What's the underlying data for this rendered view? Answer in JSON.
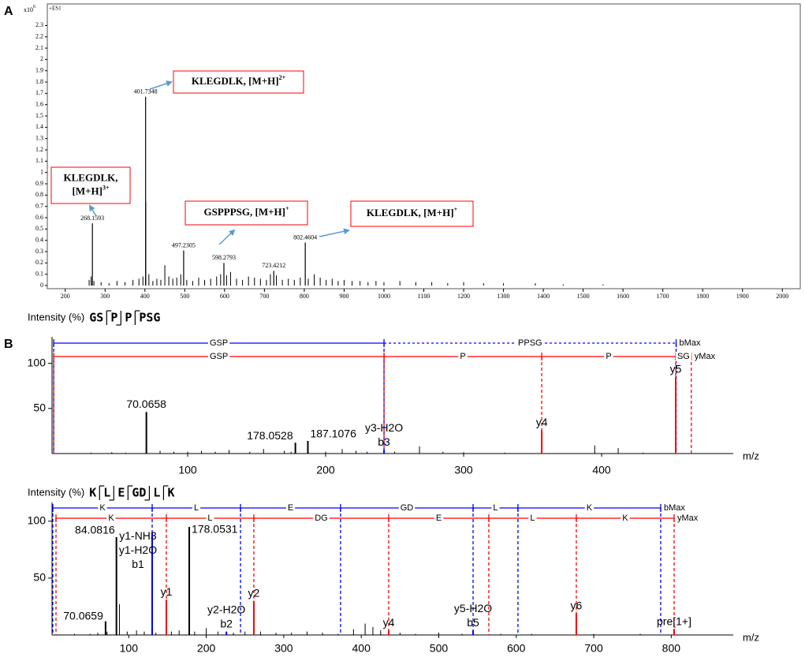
{
  "chart_data": [
    {
      "type": "stem",
      "panel_label": "A",
      "y_unit": "x10",
      "y_unit_exponent": "6",
      "mode": "+ES1",
      "xlim": [
        155,
        2045
      ],
      "xticks": [
        200,
        300,
        400,
        500,
        600,
        700,
        800,
        900,
        1000,
        1100,
        1200,
        1300,
        1400,
        1500,
        1600,
        1700,
        1800,
        1900,
        2000
      ],
      "ylim": [
        0,
        2.47
      ],
      "yticks": [
        0,
        0.1,
        0.2,
        0.3,
        0.4,
        0.5,
        0.6,
        0.7,
        0.8,
        0.9,
        1,
        1.1,
        1.2,
        1.3,
        1.4,
        1.5,
        1.6,
        1.7,
        1.8,
        1.9,
        2,
        2.1,
        2.2,
        2.3
      ],
      "color": "#000000",
      "x": [
        260,
        265,
        272,
        290,
        310,
        330,
        350,
        370,
        385,
        395,
        402.2,
        410,
        420,
        430,
        440,
        450,
        460,
        470,
        480,
        490,
        505,
        520,
        535,
        550,
        565,
        580,
        590,
        605,
        615,
        630,
        645,
        660,
        675,
        690,
        705,
        715,
        730,
        745,
        760,
        775,
        790,
        810,
        825,
        840,
        855,
        870,
        885,
        900,
        920,
        940,
        960,
        980,
        1000,
        1040,
        1080,
        1120,
        1160,
        1200,
        1250,
        1300,
        1380,
        1450,
        1550
      ],
      "values": [
        0.05,
        0.08,
        0.04,
        0.03,
        0.02,
        0.04,
        0.03,
        0.05,
        0.06,
        0.08,
        0.74,
        0.1,
        0.04,
        0.06,
        0.05,
        0.18,
        0.08,
        0.06,
        0.07,
        0.1,
        0.05,
        0.04,
        0.07,
        0.05,
        0.06,
        0.08,
        0.1,
        0.09,
        0.12,
        0.06,
        0.05,
        0.08,
        0.07,
        0.06,
        0.05,
        0.1,
        0.09,
        0.05,
        0.06,
        0.05,
        0.07,
        0.06,
        0.1,
        0.07,
        0.05,
        0.06,
        0.04,
        0.05,
        0.04,
        0.04,
        0.03,
        0.04,
        0.03,
        0.04,
        0.03,
        0.03,
        0.02,
        0.03,
        0.02,
        0.02,
        0.02,
        0.01,
        0.01
      ],
      "labeled_peaks": {
        "x": [
          268.1593,
          401.7348,
          497.2305,
          598.2793,
          723.4212,
          802.4604
        ],
        "values": [
          0.55,
          1.67,
          0.31,
          0.2,
          0.13,
          0.38
        ]
      },
      "annotation_color": "#ff0000",
      "arrow_color": "#5b9bd5",
      "annotations": [
        {
          "lines": [
            "KLEGDLK,",
            "[M+H]"
          ],
          "sup": "3+"
        },
        {
          "lines": [
            "KLEGDLK, [M+H]"
          ],
          "sup": "2+"
        },
        {
          "lines": [
            "GSPPPSG, [M+H]"
          ],
          "sup": "+"
        },
        {
          "lines": [
            "KLEGDLK, [M+H]"
          ],
          "sup": "+"
        }
      ]
    },
    {
      "type": "stem",
      "panel_label": "B",
      "y_label": "Intensity (%)",
      "sequence": [
        "GS",
        "P",
        "P",
        "PSG"
      ],
      "x_label": "m/z",
      "xlim": [
        1.7,
        495.4
      ],
      "xticks": [
        100,
        200,
        300,
        400
      ],
      "ylim": [
        0,
        125
      ],
      "yticks": [
        50,
        100
      ],
      "color": "#000000",
      "x": [
        30,
        45,
        55,
        80,
        90,
        100,
        110,
        120,
        130,
        145,
        155,
        170,
        175,
        200,
        212,
        222,
        230,
        250,
        268,
        285,
        300,
        330,
        395,
        412,
        430
      ],
      "values": [
        1,
        1.5,
        1,
        3,
        2,
        2,
        3,
        2,
        4,
        2,
        5,
        3,
        2,
        2,
        5,
        3,
        2,
        2,
        8,
        2,
        1.5,
        1,
        9,
        6,
        1
      ],
      "labeled_peaks": {
        "x": [
          70.0658,
          178.0528,
          187.1076
        ],
        "values": [
          46,
          12,
          14
        ]
      },
      "ions": {
        "x": [
          242.3,
          356.6,
          453.7
        ],
        "values": [
          4,
          26,
          85
        ],
        "labels": [
          [
            "y3-H2O",
            "b3"
          ],
          [
            "y4"
          ],
          [
            "y5"
          ]
        ],
        "colors": [
          "#0000ff",
          "#ff0000",
          "#ff0000"
        ]
      },
      "ladders": [
        {
          "name": "bMax",
          "color": "#0000ff",
          "labels": [
            "GSP",
            "PPSG"
          ],
          "bounds": [
            2.9,
            242.3,
            454
          ],
          "styles": [
            "solid",
            "dotted"
          ]
        },
        {
          "name": "yMax",
          "color": "#ff0000",
          "labels": [
            "GSP",
            "P",
            "P",
            "SG"
          ],
          "bounds": [
            2.9,
            242.3,
            356.6,
            453.7,
            465
          ],
          "styles": [
            "solid",
            "solid",
            "solid",
            "solid"
          ]
        }
      ]
    },
    {
      "type": "stem",
      "y_label": "Intensity (%)",
      "sequence": [
        "K",
        "L",
        "E",
        "GD",
        "L",
        "K"
      ],
      "x_label": "m/z",
      "xlim": [
        1,
        880
      ],
      "xticks": [
        100,
        200,
        300,
        400,
        500,
        600,
        700,
        800
      ],
      "ylim": [
        0,
        113
      ],
      "yticks": [
        50,
        100
      ],
      "color": "#000000",
      "x": [
        30,
        50,
        60,
        72,
        88,
        98,
        110,
        120,
        135,
        155,
        165,
        185,
        200,
        215,
        235,
        250,
        270,
        290,
        310,
        330,
        350,
        370,
        390,
        405,
        415,
        425,
        450,
        470,
        500,
        530,
        580,
        620,
        700,
        760
      ],
      "values": [
        1,
        1,
        2,
        3,
        27,
        3,
        4,
        3,
        2,
        3,
        4,
        3,
        6,
        3,
        2,
        3,
        3,
        2,
        2,
        3,
        2,
        1,
        5,
        10,
        7,
        4,
        2,
        1,
        2,
        1,
        1,
        1,
        1,
        1
      ],
      "labeled_peaks": {
        "x": [
          70.0659,
          84.0816,
          178.0531
        ],
        "values": [
          12,
          86,
          95
        ]
      },
      "ions": {
        "x": [
          130.2,
          148.5,
          226,
          261.4,
          435.4,
          544.3,
          677.5,
          803.7
        ],
        "values": [
          90,
          31,
          3,
          30,
          4,
          4,
          19,
          5
        ],
        "labels": [
          [
            "y1-NH3",
            "y1-H2O",
            "b1"
          ],
          [
            "y1"
          ],
          [
            "y2-H2O",
            "b2"
          ],
          [
            "y2"
          ],
          [
            "y4"
          ],
          [
            "y5-H2O",
            "b5"
          ],
          [
            "y6"
          ],
          [
            "pre[1+]"
          ]
        ],
        "colors": [
          "#0000ff",
          "#ff0000",
          "#0000ff",
          "#ff0000",
          "#ff0000",
          "#0000ff",
          "#ff0000",
          "#ff0000"
        ]
      },
      "ladders": [
        {
          "name": "bMax",
          "color": "#0000ff",
          "labels": [
            "K",
            "L",
            "E",
            "GD",
            "L",
            "K"
          ],
          "bounds": [
            2,
            130.2,
            244.2,
            373.3,
            544.3,
            602.2,
            786.4
          ],
          "styles": [
            "solid",
            "solid",
            "solid",
            "solid",
            "solid",
            "solid"
          ]
        },
        {
          "name": "yMax",
          "color": "#ff0000",
          "labels": [
            "K",
            "L",
            "DG",
            "E",
            "L",
            "K"
          ],
          "bounds": [
            6.1,
            148.5,
            261.4,
            435.4,
            564.6,
            677.5,
            803.7
          ],
          "styles": [
            "solid",
            "solid",
            "solid",
            "solid",
            "solid",
            "solid"
          ]
        }
      ]
    }
  ]
}
